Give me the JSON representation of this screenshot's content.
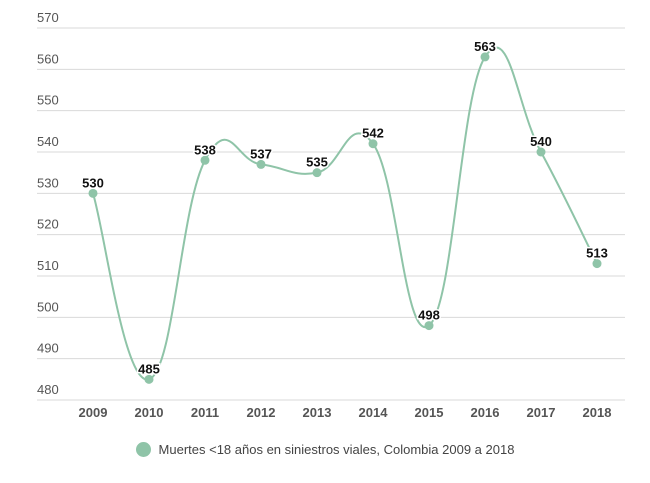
{
  "chart_data": {
    "type": "line",
    "title": "",
    "xlabel": "",
    "ylabel": "",
    "categories": [
      "2009",
      "2010",
      "2011",
      "2012",
      "2013",
      "2014",
      "2015",
      "2016",
      "2017",
      "2018"
    ],
    "series": [
      {
        "name": "Muertes <18 años en siniestros viales, Colombia 2009 a 2018",
        "values": [
          530,
          485,
          538,
          537,
          535,
          542,
          498,
          563,
          540,
          513
        ],
        "color": "#8fc4a8"
      }
    ],
    "ylim": [
      480,
      570
    ],
    "yticks": [
      "480",
      "490",
      "500",
      "510",
      "520",
      "530",
      "540",
      "550",
      "560",
      "570"
    ],
    "grid": true,
    "legend": "bottom-center",
    "smooth": true
  }
}
